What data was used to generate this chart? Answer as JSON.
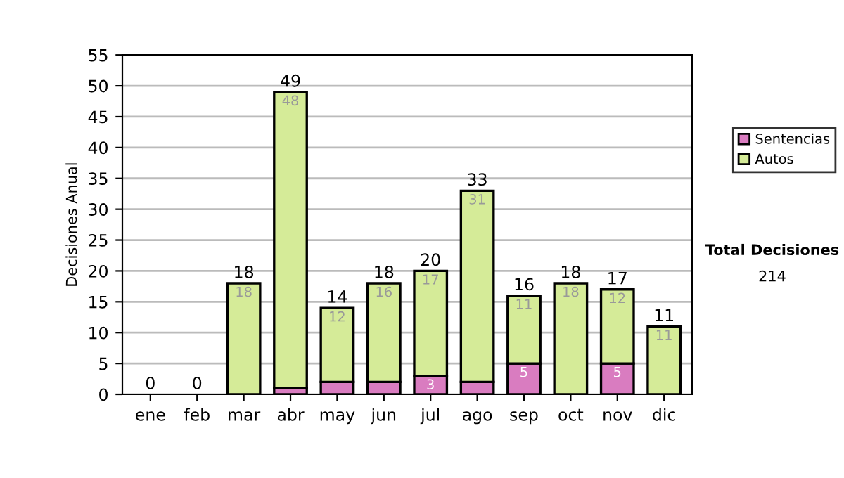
{
  "chart_data": {
    "type": "bar",
    "stacked": true,
    "ylabel": "Decisiones Anual",
    "categories": [
      "ene",
      "feb",
      "mar",
      "abr",
      "may",
      "jun",
      "jul",
      "ago",
      "sep",
      "oct",
      "nov",
      "dic"
    ],
    "series": [
      {
        "name": "Sentencias",
        "color": "#d97cc0",
        "values": [
          0,
          0,
          0,
          1,
          2,
          2,
          3,
          2,
          5,
          0,
          5,
          0
        ],
        "value_labels": [
          null,
          null,
          null,
          null,
          null,
          null,
          "3",
          null,
          "5",
          null,
          "5",
          null
        ]
      },
      {
        "name": "Autos",
        "color": "#d5eb98",
        "values": [
          0,
          0,
          18,
          48,
          12,
          16,
          17,
          31,
          11,
          18,
          12,
          11
        ],
        "value_labels": [
          null,
          null,
          "18",
          "48",
          "12",
          "16",
          "17",
          "31",
          "11",
          "18",
          "12",
          "11"
        ]
      }
    ],
    "totals": [
      "0",
      "0",
      "18",
      "49",
      "14",
      "18",
      "20",
      "33",
      "16",
      "18",
      "17",
      "11"
    ],
    "ylim": [
      0,
      55
    ],
    "yticks": [
      0,
      5,
      10,
      15,
      20,
      25,
      30,
      35,
      40,
      45,
      50,
      55
    ],
    "grid": "y",
    "legend": "right",
    "annotations": [
      "Total Decisiones",
      "214"
    ]
  }
}
